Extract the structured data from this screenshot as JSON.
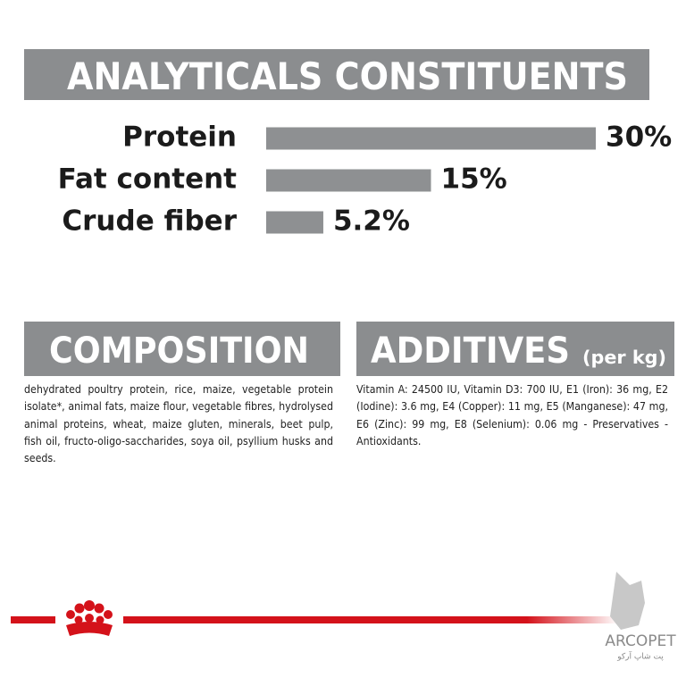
{
  "chart_data": {
    "type": "bar",
    "orientation": "horizontal",
    "title": "ANALYTICALS CONSTITUENTS",
    "categories": [
      "Protein",
      "Fat content",
      "Crude fiber"
    ],
    "values": [
      30,
      15,
      5.2
    ],
    "value_labels": [
      "30%",
      "15%",
      "5.2%"
    ],
    "color": "#8e9092"
  },
  "composition": {
    "title": "COMPOSITION",
    "text": "dehydrated poultry protein, rice, maize, vegetable protein isolate*, animal fats, maize flour, vegetable fibres, hydrolysed animal proteins, wheat, maize gluten, minerals, beet pulp, fish oil, fructo-oligo-saccharides, soya oil, psyllium husks and seeds."
  },
  "additives": {
    "title": "ADDITIVES",
    "unit": "(per kg)",
    "text": "Vitamin A: 24500 IU, Vitamin D3: 700 IU, E1 (Iron): 36 mg, E2 (Iodine): 3.6 mg, E4 (Copper): 11 mg, E5 (Manganese): 47 mg, E6 (Zinc): 99 mg, E8 (Selenium): 0.06 mg - Preservatives - Antioxidants."
  },
  "watermark": {
    "brand": "ARCOPET",
    "subtitle": "پت شاپ آرکو"
  }
}
